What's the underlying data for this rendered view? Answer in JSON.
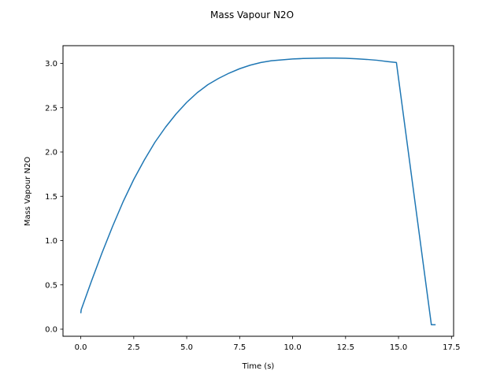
{
  "chart_data": {
    "type": "line",
    "title": "Mass Vapour N2O",
    "xlabel": "Time (s)",
    "ylabel": "Mass Vapour N2O",
    "xlim": [
      -0.84,
      17.6
    ],
    "ylim": [
      -0.08,
      3.2
    ],
    "xticks": [
      0.0,
      2.5,
      5.0,
      7.5,
      10.0,
      12.5,
      15.0,
      17.5
    ],
    "xtick_labels": [
      "0.0",
      "2.5",
      "5.0",
      "7.5",
      "10.0",
      "12.5",
      "15.0",
      "17.5"
    ],
    "yticks": [
      0.0,
      0.5,
      1.0,
      1.5,
      2.0,
      2.5,
      3.0
    ],
    "ytick_labels": [
      "0.0",
      "0.5",
      "1.0",
      "1.5",
      "2.0",
      "2.5",
      "3.0"
    ],
    "grid": false,
    "series": [
      {
        "color": "#1f77b4",
        "x": [
          0.0,
          0.02,
          0.5,
          1.0,
          1.5,
          2.0,
          2.5,
          3.0,
          3.5,
          4.0,
          4.5,
          5.0,
          5.5,
          6.0,
          6.5,
          7.0,
          7.5,
          8.0,
          8.5,
          9.0,
          9.5,
          10.0,
          10.5,
          11.0,
          11.5,
          12.0,
          12.5,
          13.0,
          13.5,
          14.0,
          14.5,
          14.9,
          16.55,
          16.75
        ],
        "y": [
          0.18,
          0.22,
          0.54,
          0.86,
          1.16,
          1.44,
          1.69,
          1.91,
          2.11,
          2.28,
          2.43,
          2.56,
          2.67,
          2.76,
          2.83,
          2.89,
          2.94,
          2.98,
          3.01,
          3.03,
          3.04,
          3.05,
          3.055,
          3.058,
          3.06,
          3.06,
          3.058,
          3.052,
          3.045,
          3.035,
          3.02,
          3.01,
          0.05,
          0.05
        ]
      }
    ]
  }
}
